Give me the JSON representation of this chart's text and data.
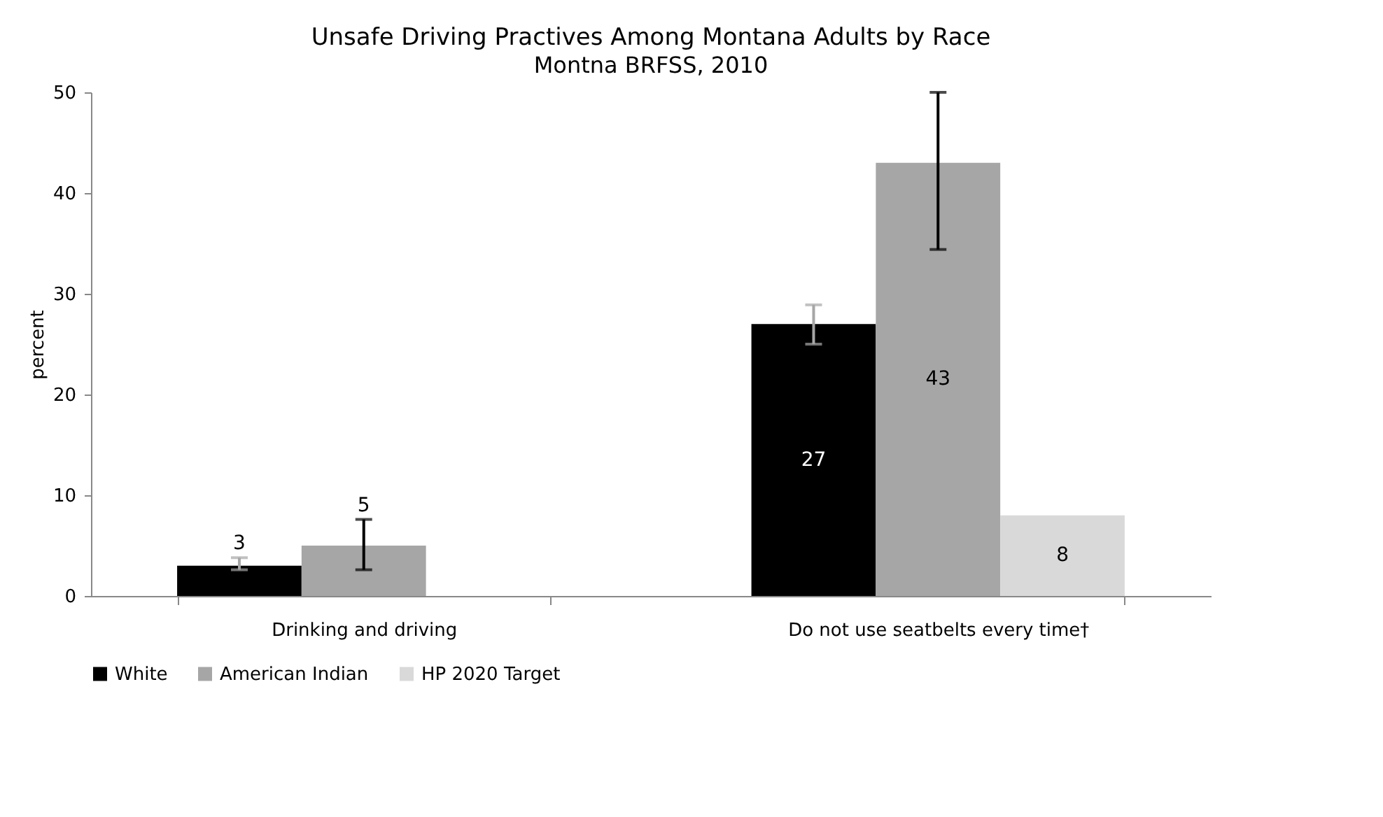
{
  "chart_data": {
    "type": "bar",
    "title": "Unsafe Driving Practives Among Montana Adults by Race",
    "subtitle": "Montna BRFSS, 2010",
    "ylabel": "percent",
    "categories": [
      "Drinking and driving",
      "Do not use seatbelts every time†"
    ],
    "series": [
      {
        "name": "White",
        "color": "#000000",
        "values": [
          3,
          27
        ],
        "errors": [
          [
            2.6,
            3.8
          ],
          [
            25,
            28.9
          ]
        ]
      },
      {
        "name": "American Indian",
        "color": "#a6a6a6",
        "values": [
          5,
          43
        ],
        "errors": [
          [
            2.6,
            7.6
          ],
          [
            34.4,
            50
          ]
        ]
      },
      {
        "name": "HP 2020 Target",
        "color": "#d9d9d9",
        "values": [
          null,
          8
        ]
      }
    ],
    "ylim": [
      0,
      50
    ],
    "yticks": [
      0,
      10,
      20,
      30,
      40,
      50
    ],
    "grid": false,
    "legend": "bottom",
    "data_labels": true
  }
}
